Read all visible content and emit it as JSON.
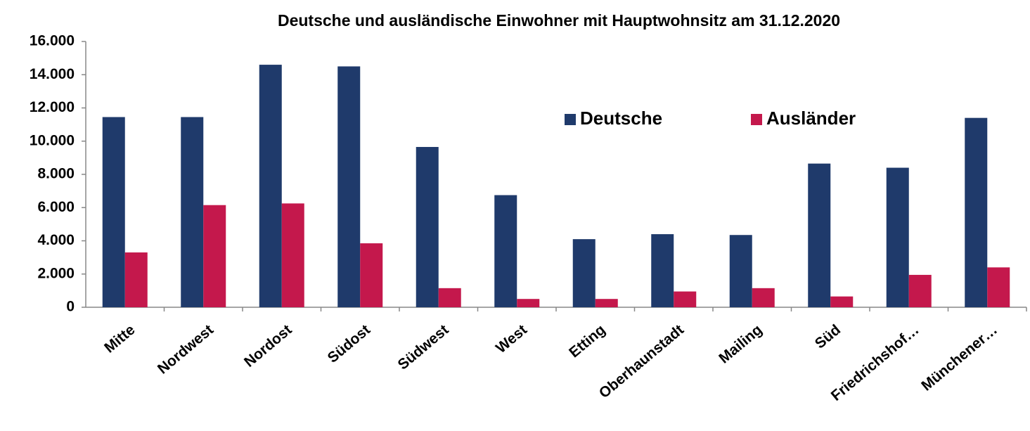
{
  "chart_data": {
    "type": "bar",
    "title": "Deutsche und ausländische Einwohner mit Hauptwohnsitz am 31.12.2020",
    "categories": [
      "Mitte",
      "Nordwest",
      "Nordost",
      "Südost",
      "Südwest",
      "West",
      "Etting",
      "Oberhaunstadt",
      "Mailing",
      "Süd",
      "Friedrichshof…",
      "Münchener…"
    ],
    "series": [
      {
        "name": "Deutsche",
        "color": "#1f3a6b",
        "values": [
          11450,
          11450,
          14600,
          14500,
          9650,
          6750,
          4100,
          4400,
          4350,
          8650,
          8400,
          11400
        ]
      },
      {
        "name": "Ausländer",
        "color": "#c4184c",
        "values": [
          3300,
          6150,
          6250,
          3850,
          1150,
          500,
          500,
          950,
          1150,
          650,
          1950,
          2400
        ]
      }
    ],
    "ylim": [
      0,
      16000
    ],
    "yticks": [
      0,
      {
        "value": 2000,
        "label": "2.000"
      },
      {
        "value": 4000,
        "label": "4.000"
      },
      {
        "value": 6000,
        "label": "6.000"
      },
      {
        "value": 8000,
        "label": "8.000"
      },
      {
        "value": 10000,
        "label": "10.000"
      },
      {
        "value": 12000,
        "label": "12.000"
      },
      {
        "value": 14000,
        "label": "14.000"
      },
      {
        "value": 16000,
        "label": "16.000"
      }
    ],
    "grid": false
  }
}
